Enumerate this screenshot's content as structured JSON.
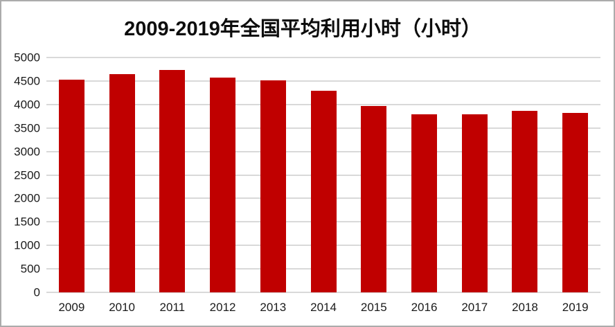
{
  "chart_data": {
    "type": "bar",
    "title": "2009-2019年全国平均利用小时（小时）",
    "categories": [
      "2009",
      "2010",
      "2011",
      "2012",
      "2013",
      "2014",
      "2015",
      "2016",
      "2017",
      "2018",
      "2019"
    ],
    "values": [
      4527,
      4650,
      4730,
      4572,
      4511,
      4286,
      3969,
      3785,
      3786,
      3862,
      3825
    ],
    "xlabel": "",
    "ylabel": "",
    "ylim": [
      0,
      5000
    ],
    "ytick_step": 500,
    "yticks": [
      0,
      500,
      1000,
      1500,
      2000,
      2500,
      3000,
      3500,
      4000,
      4500,
      5000
    ],
    "grid": true,
    "legend_position": "none",
    "bar_color": "#c00000",
    "gridline_color": "#d9d9d9",
    "text_color": "#1a1a1a",
    "title_color": "#0d0d0d",
    "frame_border_color": "#ababab",
    "background_color": "#ffffff"
  }
}
